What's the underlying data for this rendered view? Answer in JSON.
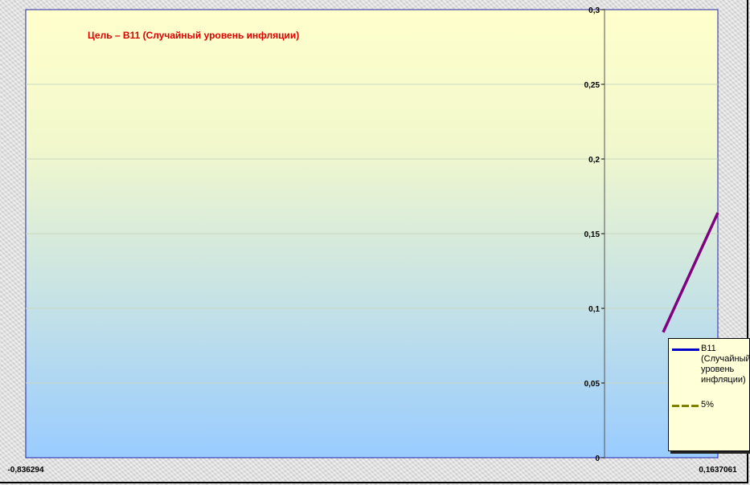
{
  "chart_data": {
    "type": "line",
    "title": "Цель – B11 (Случайный уровень инфляции)",
    "title_color": "#e00000",
    "xlim": [
      -0.836294,
      0.1637061
    ],
    "ylim": [
      0,
      0.3
    ],
    "x_tick_labels": [
      "-0,836294",
      "0,1637061"
    ],
    "y_ticks": [
      0,
      0.05,
      0.1,
      0.15,
      0.2,
      0.25,
      0.3
    ],
    "y_tick_labels": [
      "0",
      "0,05",
      "0,1",
      "0,15",
      "0,2",
      "0,25",
      "0,3"
    ],
    "grid": "horizontal",
    "legend_placement": "bottom-right",
    "series": [
      {
        "name": "B11 (Случайный уровень инфляции)",
        "color": "#0000cc",
        "line_color_drawn": "#800080",
        "style": "solid",
        "x": [
          0.0847,
          0.1637061
        ],
        "y": [
          0.084,
          0.164
        ]
      },
      {
        "name": "5%",
        "color": "#808000",
        "style": "dashed",
        "x": [],
        "y": []
      }
    ],
    "background_gradient": [
      "#ffffcc",
      "#99ccff"
    ]
  }
}
